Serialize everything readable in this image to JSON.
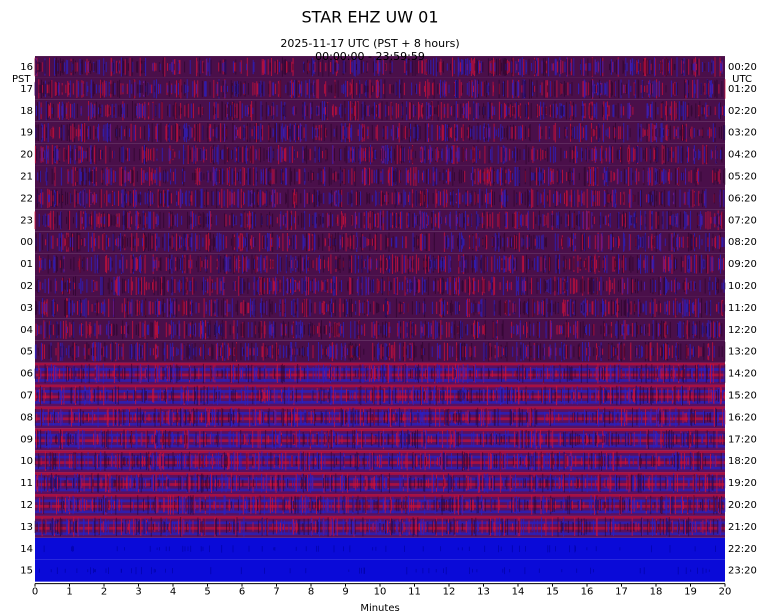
{
  "chart_data": {
    "type": "helicorder",
    "title": "STAR EHZ UW 01",
    "subtitle": [
      "2025-11-17 UTC (PST + 8 hours)",
      "00:00:00 - 23:59:59"
    ],
    "left_axis_label": "PST",
    "right_axis_label": "UTC",
    "left_labels": [
      "16",
      "17",
      "18",
      "19",
      "20",
      "21",
      "22",
      "23",
      "00",
      "01",
      "02",
      "03",
      "04",
      "05",
      "06",
      "07",
      "08",
      "09",
      "10",
      "11",
      "12",
      "13",
      "14",
      "15"
    ],
    "right_labels": [
      "00:20",
      "01:20",
      "02:20",
      "03:20",
      "04:20",
      "05:20",
      "06:20",
      "07:20",
      "08:20",
      "09:20",
      "10:20",
      "11:20",
      "12:20",
      "13:20",
      "14:20",
      "15:20",
      "16:20",
      "17:20",
      "18:20",
      "19:20",
      "20:20",
      "21:20",
      "22:20",
      "23:20"
    ],
    "xlabel": "Minutes",
    "xlim": [
      0,
      20
    ],
    "xticks": [
      0,
      1,
      2,
      3,
      4,
      5,
      6,
      7,
      8,
      9,
      10,
      11,
      12,
      13,
      14,
      15,
      16,
      17,
      18,
      19,
      20
    ]
  }
}
